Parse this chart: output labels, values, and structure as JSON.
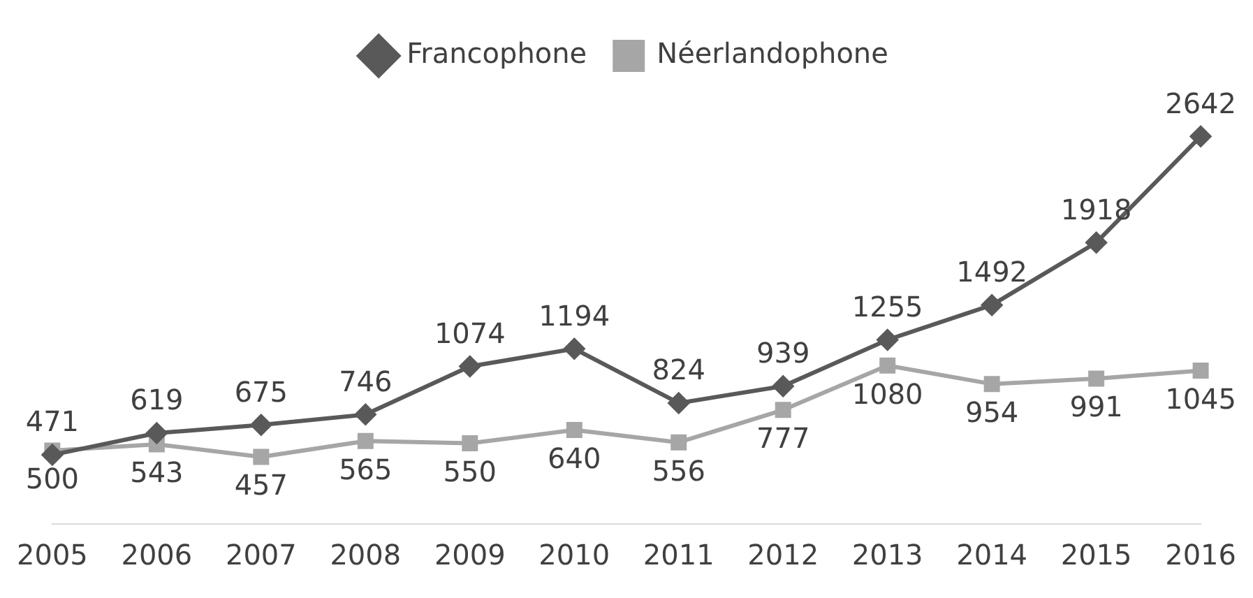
{
  "chart_data": {
    "type": "line",
    "categories": [
      "2005",
      "2006",
      "2007",
      "2008",
      "2009",
      "2010",
      "2011",
      "2012",
      "2013",
      "2014",
      "2015",
      "2016"
    ],
    "series": [
      {
        "name": "Francophone",
        "color": "#595959",
        "marker": "diamond",
        "values": [
          471,
          619,
          675,
          746,
          1074,
          1194,
          824,
          939,
          1255,
          1492,
          1918,
          2642
        ]
      },
      {
        "name": "Néerlandophone",
        "color": "#a6a6a6",
        "marker": "square",
        "values": [
          500,
          543,
          457,
          565,
          550,
          640,
          556,
          777,
          1080,
          954,
          991,
          1045
        ]
      }
    ],
    "data_labels": true,
    "legend": "top",
    "grid": false
  }
}
